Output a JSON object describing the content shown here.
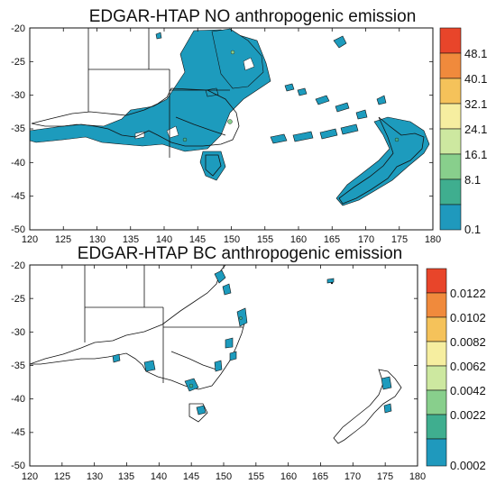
{
  "panels": [
    {
      "title": "EDGAR-HTAP NO anthropogenic emission",
      "x_ticks": [
        "120",
        "125",
        "130",
        "135",
        "140",
        "145",
        "150",
        "155",
        "160",
        "165",
        "170",
        "175",
        "180"
      ],
      "y_ticks": [
        "-20",
        "-25",
        "-30",
        "-35",
        "-40",
        "-45",
        "-50"
      ],
      "colorbar_labels": [
        "48.1",
        "40.1",
        "32.1",
        "24.1",
        "16.1",
        "8.1",
        "0.1"
      ],
      "colorbar_colors": [
        "#e8452a",
        "#f08a3c",
        "#f5c25a",
        "#f6eea0",
        "#cde8a0",
        "#88cf8c",
        "#3fae8f",
        "#1f99bd"
      ]
    },
    {
      "title": "EDGAR-HTAP BC anthropogenic emission",
      "x_ticks": [
        "120",
        "125",
        "130",
        "135",
        "140",
        "145",
        "150",
        "155",
        "160",
        "165",
        "170",
        "175",
        "180"
      ],
      "y_ticks": [
        "-20",
        "-25",
        "-30",
        "-35",
        "-40",
        "-45",
        "-50"
      ],
      "colorbar_labels": [
        "0.0122",
        "0.0102",
        "0.0082",
        "0.0062",
        "0.0042",
        "0.0022",
        "0.0002"
      ],
      "colorbar_colors": [
        "#e8452a",
        "#f08a3c",
        "#f5c25a",
        "#f6eea0",
        "#cde8a0",
        "#88cf8c",
        "#3fae8f",
        "#1f99bd"
      ]
    }
  ],
  "emission_fill_color": "#1d9bbd"
}
